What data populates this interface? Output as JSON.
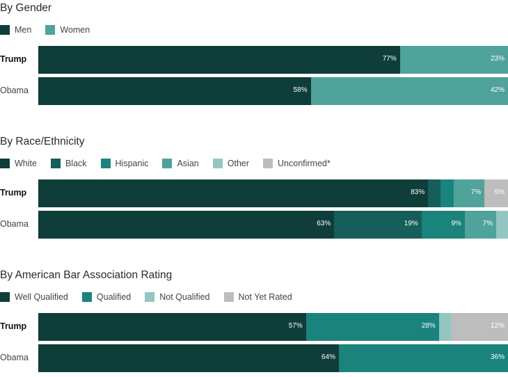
{
  "chart_data": [
    {
      "type": "bar",
      "orientation": "horizontal-stacked-100",
      "title": "By Gender",
      "legend": [
        {
          "name": "Men",
          "color": "#0f3d3a"
        },
        {
          "name": "Women",
          "color": "#4fa39b"
        }
      ],
      "rows": [
        {
          "name": "Trump",
          "bold": true,
          "values": [
            77,
            23
          ],
          "labels": [
            "77%",
            "23%"
          ]
        },
        {
          "name": "Obama",
          "bold": false,
          "values": [
            58,
            42
          ],
          "labels": [
            "58%",
            "42%"
          ]
        }
      ]
    },
    {
      "type": "bar",
      "orientation": "horizontal-stacked-100",
      "title": "By Race/Ethnicity",
      "legend": [
        {
          "name": "White",
          "color": "#0f3d3a"
        },
        {
          "name": "Black",
          "color": "#155e59"
        },
        {
          "name": "Hispanic",
          "color": "#1a837c"
        },
        {
          "name": "Asian",
          "color": "#4fa39b"
        },
        {
          "name": "Other",
          "color": "#93c6c1"
        },
        {
          "name": "Unconfirmed*",
          "color": "#bdbdbd"
        }
      ],
      "rows": [
        {
          "name": "Trump",
          "bold": true,
          "values": [
            83,
            2.6,
            2.8,
            6.6,
            0,
            5
          ],
          "labels": [
            "83%",
            "",
            "",
            "7%",
            "",
            "5%"
          ]
        },
        {
          "name": "Obama",
          "bold": false,
          "values": [
            63,
            18.6,
            9.2,
            6.7,
            2.5,
            0
          ],
          "labels": [
            "63%",
            "19%",
            "9%",
            "7%",
            "",
            ""
          ]
        }
      ]
    },
    {
      "type": "bar",
      "orientation": "horizontal-stacked-100",
      "title": "By American Bar Association Rating",
      "legend": [
        {
          "name": "Well Qualified",
          "color": "#0f3d3a"
        },
        {
          "name": "Qualified",
          "color": "#1a837c"
        },
        {
          "name": "Not Qualified",
          "color": "#93c6c1"
        },
        {
          "name": "Not Yet Rated",
          "color": "#bdbdbd"
        }
      ],
      "rows": [
        {
          "name": "Trump",
          "bold": true,
          "values": [
            57,
            28.3,
            2.7,
            12
          ],
          "labels": [
            "57%",
            "28%",
            "",
            "12%"
          ]
        },
        {
          "name": "Obama",
          "bold": false,
          "values": [
            64,
            36,
            0,
            0
          ],
          "labels": [
            "64%",
            "36%",
            "",
            ""
          ]
        }
      ]
    }
  ]
}
